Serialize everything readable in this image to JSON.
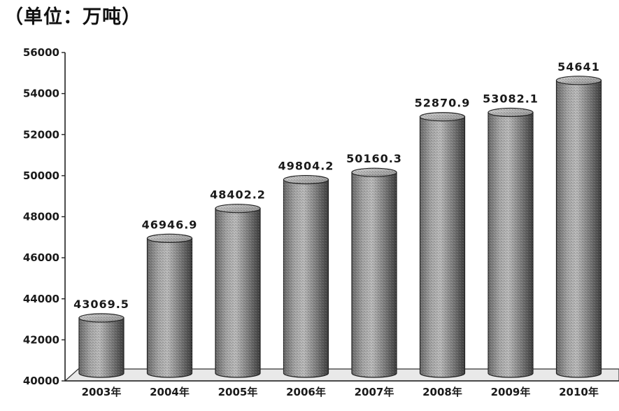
{
  "unit_label": "（单位：万吨）",
  "chart_data": {
    "type": "bar",
    "style": "3d-cylinder",
    "categories": [
      "2003年",
      "2004年",
      "2005年",
      "2006年",
      "2007年",
      "2008年",
      "2009年",
      "2010年"
    ],
    "values": [
      43069.5,
      46946.9,
      48402.2,
      49804.2,
      50160.3,
      52870.9,
      53082.1,
      54641
    ],
    "data_labels": [
      "43069.5",
      "46946.9",
      "48402.2",
      "49804.2",
      "50160.3",
      "52870.9",
      "53082.1",
      "54641"
    ],
    "ylim": [
      40000,
      56000
    ],
    "yticks": [
      40000,
      42000,
      44000,
      46000,
      48000,
      50000,
      52000,
      54000,
      56000
    ],
    "grid": false,
    "legend": "none",
    "colors": {
      "bar_fill": "#8a8a8a",
      "bar_dark": "#3a3a3a",
      "axis": "#222222"
    }
  }
}
